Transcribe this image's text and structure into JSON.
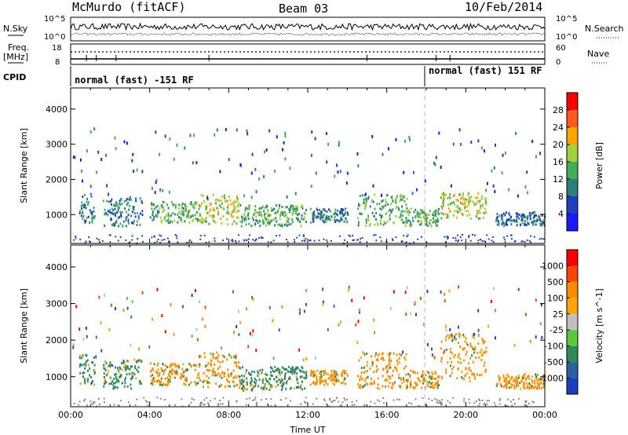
{
  "header": {
    "station": "McMurdo (fitACF)",
    "beam": "Beam 03",
    "date": "10/Feb/2014"
  },
  "summary_panel": {
    "nsky_label": "N.Sky",
    "nsky_ticks": [
      "10^5",
      "10^0"
    ],
    "nsearch_label": "N.Search",
    "nsearch_ticks": [
      "10^5",
      "10^0"
    ],
    "freq_label": "Freq.",
    "freq_unit": "[MHz]",
    "freq_ticks": [
      "18",
      "8"
    ],
    "nave_label": "Nave",
    "nave_ticks": [
      "60",
      "0"
    ],
    "cpid_label": "CPID",
    "cpid_segments": [
      {
        "text": "normal (fast) -151 RF",
        "start_hour": 0,
        "end_hour": 18
      },
      {
        "text": "normal (fast) 151 RF",
        "start_hour": 18,
        "end_hour": 24
      }
    ]
  },
  "chart_data": [
    {
      "type": "heatmap",
      "name": "power",
      "ylabel": "Slant Range [km]",
      "xlabel": "",
      "xlim_hours": [
        0,
        24
      ],
      "ylim": [
        180,
        4600
      ],
      "yticks": [
        "1000",
        "2000",
        "3000",
        "4000"
      ],
      "ytick_values": [
        1000,
        2000,
        3000,
        4000
      ],
      "colorbar": {
        "label": "Power [dB]",
        "labels": [
          "4",
          "8",
          "12",
          "16",
          "20",
          "24",
          "28"
        ],
        "colors": [
          "#1a1aff",
          "#1f3fbf",
          "#2e7d7d",
          "#3fae5a",
          "#9ed13a",
          "#ffa500",
          "#ff5a1f",
          "#ff0000"
        ]
      },
      "scatter_bands": [
        {
          "start_hour": 0.4,
          "end_hour": 1.2,
          "range_low": 800,
          "range_high": 1650,
          "level": 2
        },
        {
          "start_hour": 1.6,
          "end_hour": 3.6,
          "range_low": 700,
          "range_high": 1500,
          "level": 2
        },
        {
          "start_hour": 4.0,
          "end_hour": 6.5,
          "range_low": 800,
          "range_high": 1400,
          "level": 3
        },
        {
          "start_hour": 6.5,
          "end_hour": 8.5,
          "range_low": 750,
          "range_high": 1600,
          "level": 4
        },
        {
          "start_hour": 8.5,
          "end_hour": 11.9,
          "range_low": 700,
          "range_high": 1300,
          "level": 3
        },
        {
          "start_hour": 12.1,
          "end_hour": 14.0,
          "range_low": 800,
          "range_high": 1200,
          "level": 2
        },
        {
          "start_hour": 14.5,
          "end_hour": 17.0,
          "range_low": 700,
          "range_high": 1600,
          "level": 3
        },
        {
          "start_hour": 17.0,
          "end_hour": 18.6,
          "range_low": 700,
          "range_high": 1200,
          "level": 3
        },
        {
          "start_hour": 18.7,
          "end_hour": 21.0,
          "range_low": 900,
          "range_high": 1650,
          "level": 4
        },
        {
          "start_hour": 21.5,
          "end_hour": 24.0,
          "range_low": 700,
          "range_high": 1100,
          "level": 2
        }
      ]
    },
    {
      "type": "heatmap",
      "name": "velocity",
      "ylabel": "Slant Range [km]",
      "xlabel": "Time UT",
      "xlim_hours": [
        0,
        24
      ],
      "ylim": [
        180,
        4600
      ],
      "yticks": [
        "1000",
        "2000",
        "3000",
        "4000"
      ],
      "ytick_values": [
        1000,
        2000,
        3000,
        4000
      ],
      "xticks": [
        "00:00",
        "04:00",
        "08:00",
        "12:00",
        "16:00",
        "20:00",
        "00:00"
      ],
      "xtick_hours": [
        0,
        4,
        8,
        12,
        16,
        20,
        24
      ],
      "colorbar": {
        "label": "Velocity [m s^-1]",
        "labels": [
          "1000",
          "500",
          "100",
          "25",
          "-25",
          "-100",
          "-500",
          "-1000"
        ],
        "colors": [
          "#1a3fbf",
          "#2a5fa0",
          "#2e8b57",
          "#5ac83a",
          "#c0c0c0",
          "#ffa500",
          "#ff8c00",
          "#ff4500",
          "#ff0000"
        ]
      },
      "scatter_bands": [
        {
          "start_hour": 0.4,
          "end_hour": 1.2,
          "range_low": 800,
          "range_high": 1650,
          "level": "toward"
        },
        {
          "start_hour": 1.6,
          "end_hour": 3.6,
          "range_low": 700,
          "range_high": 1500,
          "level": "toward"
        },
        {
          "start_hour": 4.0,
          "end_hour": 6.5,
          "range_low": 800,
          "range_high": 1400,
          "level": "away"
        },
        {
          "start_hour": 6.5,
          "end_hour": 8.5,
          "range_low": 750,
          "range_high": 1700,
          "level": "away"
        },
        {
          "start_hour": 8.5,
          "end_hour": 11.9,
          "range_low": 650,
          "range_high": 1300,
          "level": "toward"
        },
        {
          "start_hour": 12.1,
          "end_hour": 14.0,
          "range_low": 800,
          "range_high": 1200,
          "level": "away"
        },
        {
          "start_hour": 14.5,
          "end_hour": 17.0,
          "range_low": 700,
          "range_high": 1700,
          "level": "away"
        },
        {
          "start_hour": 17.0,
          "end_hour": 18.6,
          "range_low": 700,
          "range_high": 1200,
          "level": "away"
        },
        {
          "start_hour": 18.7,
          "end_hour": 21.0,
          "range_low": 900,
          "range_high": 2200,
          "level": "away"
        },
        {
          "start_hour": 21.5,
          "end_hour": 24.0,
          "range_low": 700,
          "range_high": 1100,
          "level": "away"
        }
      ]
    }
  ]
}
